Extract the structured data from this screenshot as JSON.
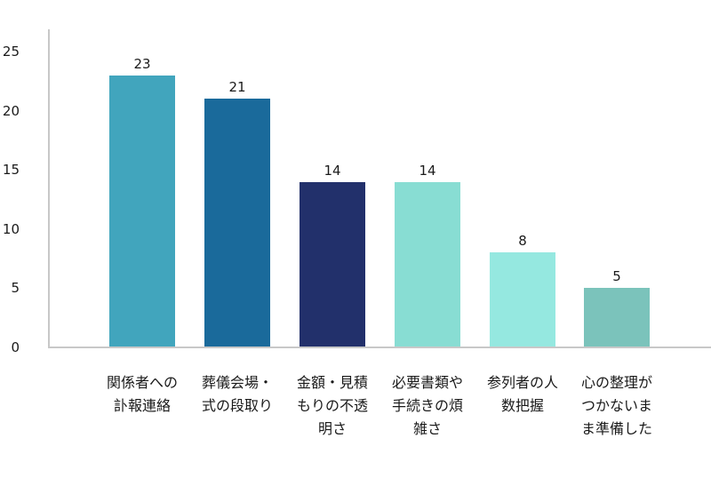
{
  "chart_data": {
    "type": "bar",
    "title": "",
    "xlabel": "",
    "ylabel": "",
    "ylim": [
      0,
      25
    ],
    "yticks": [
      0,
      5,
      10,
      15,
      20,
      25
    ],
    "grid": false,
    "legend": null,
    "categories": [
      "関係者への訃報連絡",
      "葬儀会場・式の段取り",
      "金額・見積もりの不透明さ",
      "必要書類や手続きの煩雑さ",
      "参列者の人数把握",
      "心の整理がつかないまま準備した"
    ],
    "category_lines": [
      [
        "関係者への",
        "訃報連絡"
      ],
      [
        "葬儀会場・",
        "式の段取り"
      ],
      [
        "金額・見積",
        "もりの不透",
        "明さ"
      ],
      [
        "必要書類や",
        "手続きの煩",
        "雑さ"
      ],
      [
        "参列者の人",
        "数把握"
      ],
      [
        "心の整理が",
        "つかないま",
        "ま準備した"
      ]
    ],
    "values": [
      23,
      21,
      14,
      14,
      8,
      5
    ],
    "data_labels": [
      "23",
      "21",
      "14",
      "14",
      "8",
      "5"
    ],
    "colors": [
      "#41a5bd",
      "#1a6a9b",
      "#22306b",
      "#88ddd3",
      "#95e8e0",
      "#7bc3bb"
    ]
  }
}
